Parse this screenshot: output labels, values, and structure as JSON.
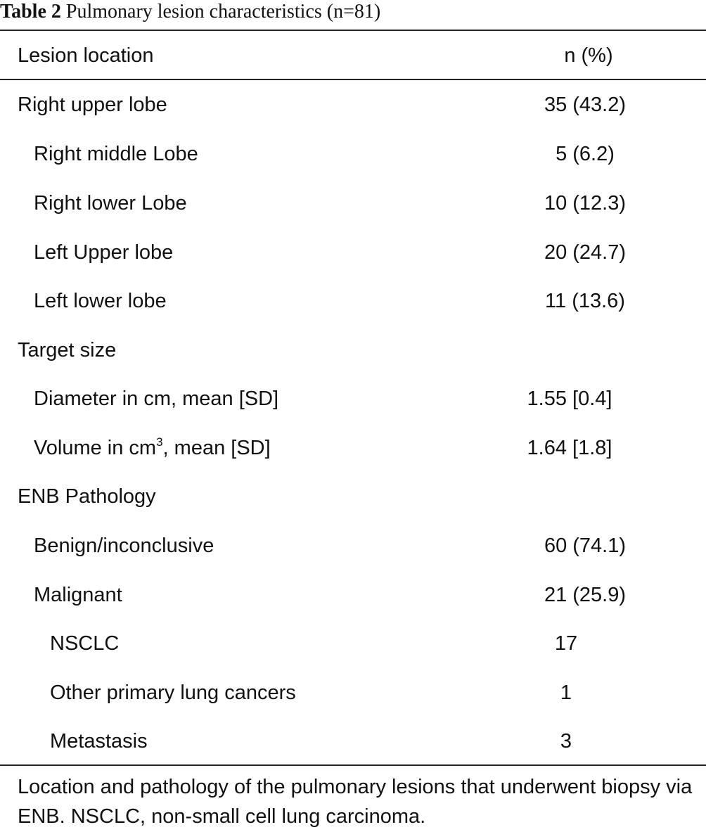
{
  "table": {
    "caption_label": "Table 2",
    "caption_text": "Pulmonary lesion characteristics (n=81)",
    "headers": {
      "location": "Lesion location",
      "value": "n (%)"
    },
    "rows": [
      {
        "label": "Right upper lobe",
        "value": "35 (43.2)"
      },
      {
        "label": "Right middle Lobe",
        "value": "5 (6.2)"
      },
      {
        "label": "Right lower Lobe",
        "value": "10 (12.3)"
      },
      {
        "label": "Left Upper lobe",
        "value": "20 (24.7)"
      },
      {
        "label": "Left lower lobe",
        "value": "11 (13.6)"
      },
      {
        "label": "Target size",
        "value": ""
      },
      {
        "label": "Diameter in cm, mean [SD]",
        "value": "1.55 [0.4]"
      },
      {
        "label_prefix": "Volume in cm",
        "label_sup": "3",
        "label_suffix": ", mean [SD]",
        "value": "1.64 [1.8]"
      },
      {
        "label": "ENB Pathology",
        "value": ""
      },
      {
        "label": "Benign/inconclusive",
        "value": "60 (74.1)"
      },
      {
        "label": "Malignant",
        "value": "21 (25.9)"
      },
      {
        "label": "NSCLC",
        "value": "17"
      },
      {
        "label": "Other primary lung cancers",
        "value": "1"
      },
      {
        "label": "Metastasis",
        "value": "3"
      }
    ],
    "footnote": "Location and pathology of the pulmonary lesions that underwent biopsy via ENB. NSCLC, non-small cell lung carcinoma."
  }
}
